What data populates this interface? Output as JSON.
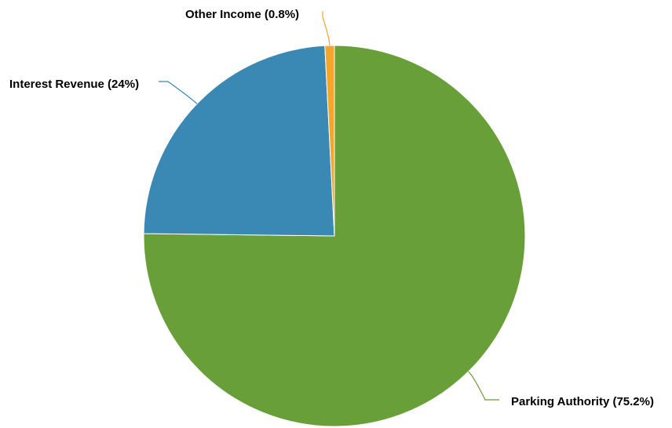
{
  "chart_data": {
    "type": "pie",
    "title": "",
    "legend": "none",
    "slices": [
      {
        "label": "Parking Authority (75.2%)",
        "name": "Parking Authority",
        "value": 75.2,
        "color": "#689f38"
      },
      {
        "label": "Interest Revenue (24%)",
        "name": "Interest Revenue",
        "value": 24,
        "color": "#3a89b4"
      },
      {
        "label": "Other Income (0.8%)",
        "name": "Other Income",
        "value": 0.8,
        "color": "#f4a62a"
      }
    ]
  }
}
